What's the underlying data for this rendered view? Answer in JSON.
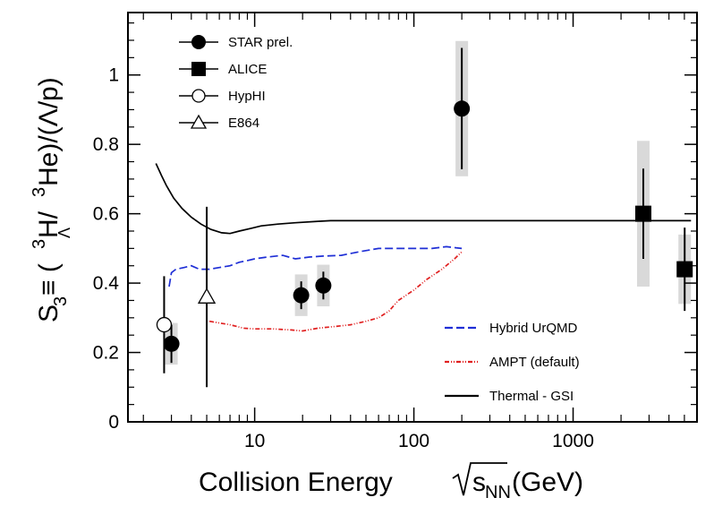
{
  "chart_data": {
    "type": "scatter",
    "x_scale": "log",
    "xlim": [
      1.6,
      6000
    ],
    "ylim": [
      0,
      1.18
    ],
    "x_ticks": [
      {
        "value": 10,
        "label": "10"
      },
      {
        "value": 100,
        "label": "100"
      },
      {
        "value": 1000,
        "label": "1000"
      }
    ],
    "y_ticks": [
      {
        "value": 0,
        "label": "0"
      },
      {
        "value": 0.2,
        "label": "0.2"
      },
      {
        "value": 0.4,
        "label": "0.4"
      },
      {
        "value": 0.6,
        "label": "0.6"
      },
      {
        "value": 0.8,
        "label": "0.8"
      },
      {
        "value": 1.0,
        "label": "1"
      }
    ],
    "xlabel_main": "Collision Energy ",
    "xlabel_s": "s",
    "xlabel_sub": "NN",
    "xlabel_unit": " (GeV)",
    "ylabel_s": "S",
    "ylabel_s_sub": "3",
    "ylabel_eq": " ≡ (",
    "ylabel_sup": "3",
    "ylabel_h": "H/",
    "ylabel_lambda_sub": "Λ",
    "ylabel_he": "He)/(Λ/p)",
    "grid": false,
    "series": [
      {
        "name": "STAR prel.",
        "marker": "filled-circle",
        "points": [
          {
            "x": 3.0,
            "y": 0.225,
            "err": 0.055,
            "sys": 0.06
          },
          {
            "x": 19.6,
            "y": 0.365,
            "err": 0.04,
            "sys": 0.06
          },
          {
            "x": 27,
            "y": 0.393,
            "err": 0.04,
            "sys": 0.06
          },
          {
            "x": 200,
            "y": 0.903,
            "err": 0.175,
            "sys": 0.195
          }
        ]
      },
      {
        "name": "ALICE",
        "marker": "filled-square",
        "points": [
          {
            "x": 2760,
            "y": 0.6,
            "err": 0.13,
            "sys": 0.21
          },
          {
            "x": 5020,
            "y": 0.44,
            "err": 0.12,
            "sys": 0.1
          }
        ]
      },
      {
        "name": "HypHI",
        "marker": "open-circle",
        "points": [
          {
            "x": 2.7,
            "y": 0.28,
            "err": 0.14
          }
        ]
      },
      {
        "name": "E864",
        "marker": "open-triangle",
        "points": [
          {
            "x": 5.0,
            "y": 0.36,
            "err_low": 0.26,
            "err_high": 0.26
          }
        ]
      }
    ],
    "curves": [
      {
        "name": "Hybrid UrQMD",
        "style": "dashed",
        "color": "#1f2fd6",
        "points": [
          [
            2.9,
            0.39
          ],
          [
            3.0,
            0.43
          ],
          [
            3.2,
            0.44
          ],
          [
            3.6,
            0.445
          ],
          [
            4.0,
            0.45
          ],
          [
            4.5,
            0.44
          ],
          [
            5.2,
            0.44
          ],
          [
            6.0,
            0.445
          ],
          [
            7.0,
            0.45
          ],
          [
            8.0,
            0.46
          ],
          [
            9.0,
            0.465
          ],
          [
            10,
            0.47
          ],
          [
            12,
            0.475
          ],
          [
            15,
            0.48
          ],
          [
            18,
            0.47
          ],
          [
            22,
            0.475
          ],
          [
            27,
            0.478
          ],
          [
            35,
            0.48
          ],
          [
            45,
            0.49
          ],
          [
            60,
            0.5
          ],
          [
            80,
            0.5
          ],
          [
            100,
            0.5
          ],
          [
            130,
            0.5
          ],
          [
            160,
            0.505
          ],
          [
            200,
            0.5
          ]
        ]
      },
      {
        "name": "AMPT (default)",
        "style": "dash-dot",
        "color": "#e02020",
        "points": [
          [
            5.2,
            0.29
          ],
          [
            6.0,
            0.285
          ],
          [
            7.0,
            0.28
          ],
          [
            8.5,
            0.27
          ],
          [
            10,
            0.268
          ],
          [
            13,
            0.268
          ],
          [
            17,
            0.265
          ],
          [
            20,
            0.262
          ],
          [
            25,
            0.27
          ],
          [
            32,
            0.275
          ],
          [
            40,
            0.28
          ],
          [
            50,
            0.29
          ],
          [
            60,
            0.3
          ],
          [
            70,
            0.32
          ],
          [
            80,
            0.35
          ],
          [
            100,
            0.38
          ],
          [
            120,
            0.41
          ],
          [
            150,
            0.44
          ],
          [
            180,
            0.47
          ],
          [
            200,
            0.49
          ]
        ]
      },
      {
        "name": "Thermal - GSI",
        "style": "solid",
        "color": "#000000",
        "points": [
          [
            2.4,
            0.745
          ],
          [
            2.6,
            0.71
          ],
          [
            2.8,
            0.68
          ],
          [
            3.1,
            0.645
          ],
          [
            3.5,
            0.615
          ],
          [
            4.0,
            0.59
          ],
          [
            4.6,
            0.57
          ],
          [
            5.3,
            0.555
          ],
          [
            6.2,
            0.545
          ],
          [
            7.0,
            0.543
          ],
          [
            8.0,
            0.55
          ],
          [
            9.5,
            0.558
          ],
          [
            11,
            0.565
          ],
          [
            14,
            0.57
          ],
          [
            18,
            0.574
          ],
          [
            25,
            0.578
          ],
          [
            30,
            0.58
          ],
          [
            50,
            0.58
          ],
          [
            100,
            0.58
          ],
          [
            500,
            0.58
          ],
          [
            1000,
            0.58
          ],
          [
            3000,
            0.58
          ],
          [
            5500,
            0.58
          ]
        ]
      }
    ],
    "legend_markers": [
      "STAR prel.",
      "ALICE",
      "HypHI",
      "E864"
    ],
    "legend_lines": [
      "Hybrid UrQMD",
      "AMPT (default)",
      "Thermal - GSI"
    ],
    "legend_markers_position": "top-left",
    "legend_lines_position": "bottom-right"
  }
}
